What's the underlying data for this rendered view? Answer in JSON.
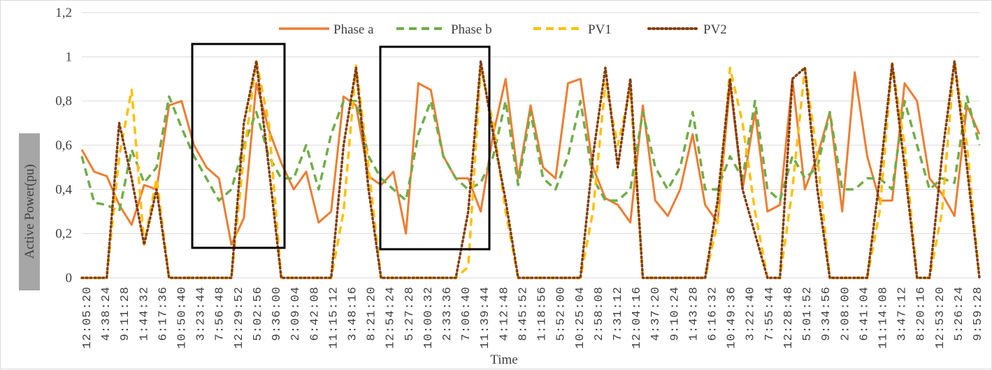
{
  "chart_data": {
    "type": "line",
    "title": "",
    "xlabel": "Time",
    "ylabel": "Active Power(pu)",
    "ylim": [
      0,
      1.2
    ],
    "yticks": [
      "0",
      "0,2",
      "0,4",
      "0,6",
      "0,8",
      "1",
      "1,2"
    ],
    "grid": "horizontal",
    "legend_position": "top-center",
    "x_tick_labels": [
      "12:05:20",
      "4:38:24",
      "9:11:28",
      "1:44:32",
      "6:17:36",
      "10:50:40",
      "3:23:44",
      "7:56:48",
      "12:29:52",
      "5:02:56",
      "9:36:00",
      "2:09:04",
      "6:42:08",
      "11:15:12",
      "3:48:16",
      "8:21:20",
      "12:54:24",
      "5:27:28",
      "10:00:32",
      "2:33:36",
      "7:06:40",
      "11:39:44",
      "4:12:48",
      "8:45:52",
      "1:18:56",
      "5:52:00",
      "10:25:04",
      "2:58:08",
      "7:31:12",
      "12:04:16",
      "4:37:20",
      "9:10:24",
      "1:43:28",
      "6:16:32",
      "10:49:36",
      "3:22:40",
      "7:55:44",
      "12:28:48",
      "5:01:52",
      "9:34:56",
      "2:08:00",
      "6:41:04",
      "11:14:08",
      "3:47:12",
      "8:20:16",
      "12:53:20",
      "5:26:24",
      "9:59:28"
    ],
    "series": [
      {
        "name": "Phase a",
        "color": "#ED7D31",
        "dash": "solid",
        "values": [
          0.58,
          0.48,
          0.46,
          0.33,
          0.24,
          0.42,
          0.4,
          0.78,
          0.8,
          0.6,
          0.5,
          0.45,
          0.15,
          0.27,
          0.88,
          0.67,
          0.52,
          0.4,
          0.48,
          0.25,
          0.3,
          0.82,
          0.78,
          0.46,
          0.42,
          0.48,
          0.2,
          0.88,
          0.85,
          0.55,
          0.45,
          0.45,
          0.3,
          0.65,
          0.9,
          0.45,
          0.78,
          0.5,
          0.45,
          0.88,
          0.9,
          0.5,
          0.36,
          0.33,
          0.25,
          0.78,
          0.35,
          0.28,
          0.4,
          0.65,
          0.33,
          0.25,
          0.88,
          0.4,
          0.75,
          0.3,
          0.33,
          0.9,
          0.4,
          0.55,
          0.75,
          0.3,
          0.93,
          0.55,
          0.35,
          0.35,
          0.88,
          0.8,
          0.45,
          0.38,
          0.28,
          0.78,
          0.65
        ]
      },
      {
        "name": "Phase b",
        "color": "#70AD47",
        "dash": "dash",
        "values": [
          0.55,
          0.34,
          0.33,
          0.3,
          0.58,
          0.43,
          0.5,
          0.82,
          0.68,
          0.55,
          0.45,
          0.35,
          0.4,
          0.6,
          0.75,
          0.55,
          0.45,
          0.45,
          0.6,
          0.4,
          0.65,
          0.8,
          0.8,
          0.55,
          0.45,
          0.4,
          0.35,
          0.65,
          0.8,
          0.55,
          0.45,
          0.4,
          0.43,
          0.55,
          0.8,
          0.42,
          0.75,
          0.45,
          0.4,
          0.55,
          0.8,
          0.45,
          0.35,
          0.35,
          0.4,
          0.75,
          0.5,
          0.4,
          0.5,
          0.75,
          0.4,
          0.4,
          0.55,
          0.45,
          0.8,
          0.4,
          0.35,
          0.55,
          0.45,
          0.5,
          0.75,
          0.4,
          0.4,
          0.45,
          0.45,
          0.4,
          0.8,
          0.6,
          0.4,
          0.45,
          0.43,
          0.82,
          0.6
        ]
      },
      {
        "name": "PV1",
        "color": "#FFC000",
        "dash": "dash",
        "values": [
          0,
          0,
          0,
          0.55,
          0.85,
          0.15,
          0.45,
          0,
          0,
          0,
          0,
          0,
          0,
          0.55,
          0.98,
          0.7,
          0,
          0,
          0,
          0,
          0,
          0.3,
          0.96,
          0.5,
          0,
          0,
          0,
          0,
          0,
          0,
          0,
          0.05,
          0.95,
          0.7,
          0.3,
          0,
          0,
          0,
          0,
          0,
          0,
          0.3,
          0.88,
          0.6,
          0.85,
          0,
          0,
          0,
          0,
          0,
          0,
          0.25,
          0.95,
          0.7,
          0.3,
          0,
          0,
          0.4,
          0.95,
          0.55,
          0,
          0,
          0,
          0,
          0.3,
          0.97,
          0.6,
          0,
          0,
          0.3,
          0.98,
          0.6,
          0
        ]
      },
      {
        "name": "PV2",
        "color": "#843C0C",
        "dash": "dot",
        "values": [
          0,
          0,
          0,
          0.7,
          0.45,
          0.15,
          0.4,
          0,
          0,
          0,
          0,
          0,
          0,
          0.7,
          0.98,
          0.5,
          0,
          0,
          0,
          0,
          0,
          0.6,
          0.95,
          0.4,
          0,
          0,
          0,
          0,
          0,
          0,
          0,
          0.3,
          0.98,
          0.65,
          0.35,
          0,
          0,
          0,
          0,
          0,
          0,
          0.55,
          0.95,
          0.5,
          0.9,
          0,
          0,
          0,
          0,
          0,
          0,
          0.35,
          0.9,
          0.4,
          0.2,
          0,
          0,
          0.9,
          0.95,
          0.4,
          0,
          0,
          0,
          0,
          0.45,
          0.97,
          0.5,
          0,
          0,
          0.55,
          0.98,
          0.5,
          0
        ]
      }
    ],
    "annotations": [
      {
        "type": "rectangle",
        "label": ""
      },
      {
        "type": "rectangle",
        "label": ""
      }
    ]
  }
}
